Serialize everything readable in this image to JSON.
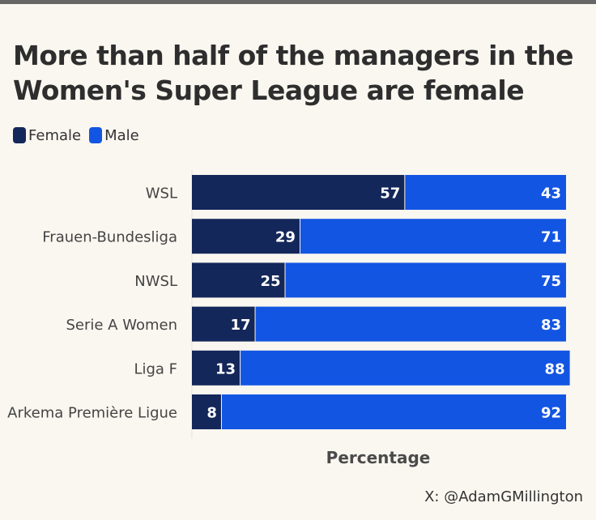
{
  "title_line1": "More than half of the managers in the",
  "title_line2": "Women's Super League are female",
  "footer": "X: @AdamGMillington",
  "chart_data": {
    "type": "bar",
    "orientation": "horizontal",
    "stacked": true,
    "categories": [
      "WSL",
      "Frauen-Bundesliga",
      "NWSL",
      "Serie A Women",
      "Liga F",
      "Arkema Première Ligue"
    ],
    "series": [
      {
        "name": "Female",
        "values": [
          57,
          29,
          25,
          17,
          13,
          8
        ],
        "color": "#14275a"
      },
      {
        "name": "Male",
        "values": [
          43,
          71,
          75,
          83,
          88,
          92
        ],
        "color": "#1355e3"
      }
    ],
    "xlabel": "Percentage",
    "ylabel": "",
    "xlim": [
      0,
      100
    ],
    "legend_position": "top-left",
    "data_labels": true,
    "grid": false
  }
}
